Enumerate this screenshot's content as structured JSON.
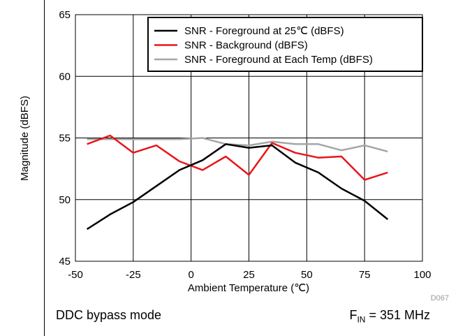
{
  "chart_data": {
    "type": "line",
    "xlabel": "Ambient Temperature (℃)",
    "ylabel": "Magnitude (dBFS)",
    "xlim": [
      -50,
      100
    ],
    "ylim": [
      45,
      65
    ],
    "xticks": [
      -50,
      -25,
      0,
      25,
      50,
      75,
      100
    ],
    "yticks": [
      45,
      50,
      55,
      60,
      65
    ],
    "x_tick_labels": [
      "-50",
      "-25",
      "0",
      "25",
      "50",
      "75",
      "100"
    ],
    "y_tick_labels": [
      "45",
      "50",
      "55",
      "60",
      "65"
    ],
    "grid": true,
    "legend_position": "top-right",
    "x": [
      -45,
      -35,
      -25,
      -15,
      -5,
      5,
      15,
      25,
      35,
      45,
      55,
      65,
      75,
      85
    ],
    "series": [
      {
        "name": "SNR - Foreground at 25℃ (dBFS)",
        "color": "#000000",
        "values": [
          47.6,
          48.8,
          49.8,
          51.1,
          52.4,
          53.2,
          54.5,
          54.2,
          54.4,
          53.0,
          52.2,
          50.9,
          49.9,
          48.4
        ]
      },
      {
        "name": "SNR - Background (dBFS)",
        "color": "#e8161b",
        "values": [
          54.5,
          55.2,
          53.8,
          54.4,
          53.1,
          52.4,
          53.5,
          52.0,
          54.6,
          53.8,
          53.4,
          53.5,
          51.6,
          52.2
        ]
      },
      {
        "name": "SNR - Foreground at Each Temp (dBFS)",
        "color": "#a6a6a6",
        "values": [
          54.9,
          54.9,
          54.9,
          54.9,
          54.9,
          55.0,
          54.5,
          54.4,
          54.7,
          54.5,
          54.5,
          54.0,
          54.4,
          53.9
        ]
      }
    ]
  },
  "figure_id": "D067",
  "footnote_left": "DDC bypass mode",
  "footnote_right": {
    "prefix": "F",
    "subscript": "IN",
    "suffix": " = 351 MHz"
  }
}
